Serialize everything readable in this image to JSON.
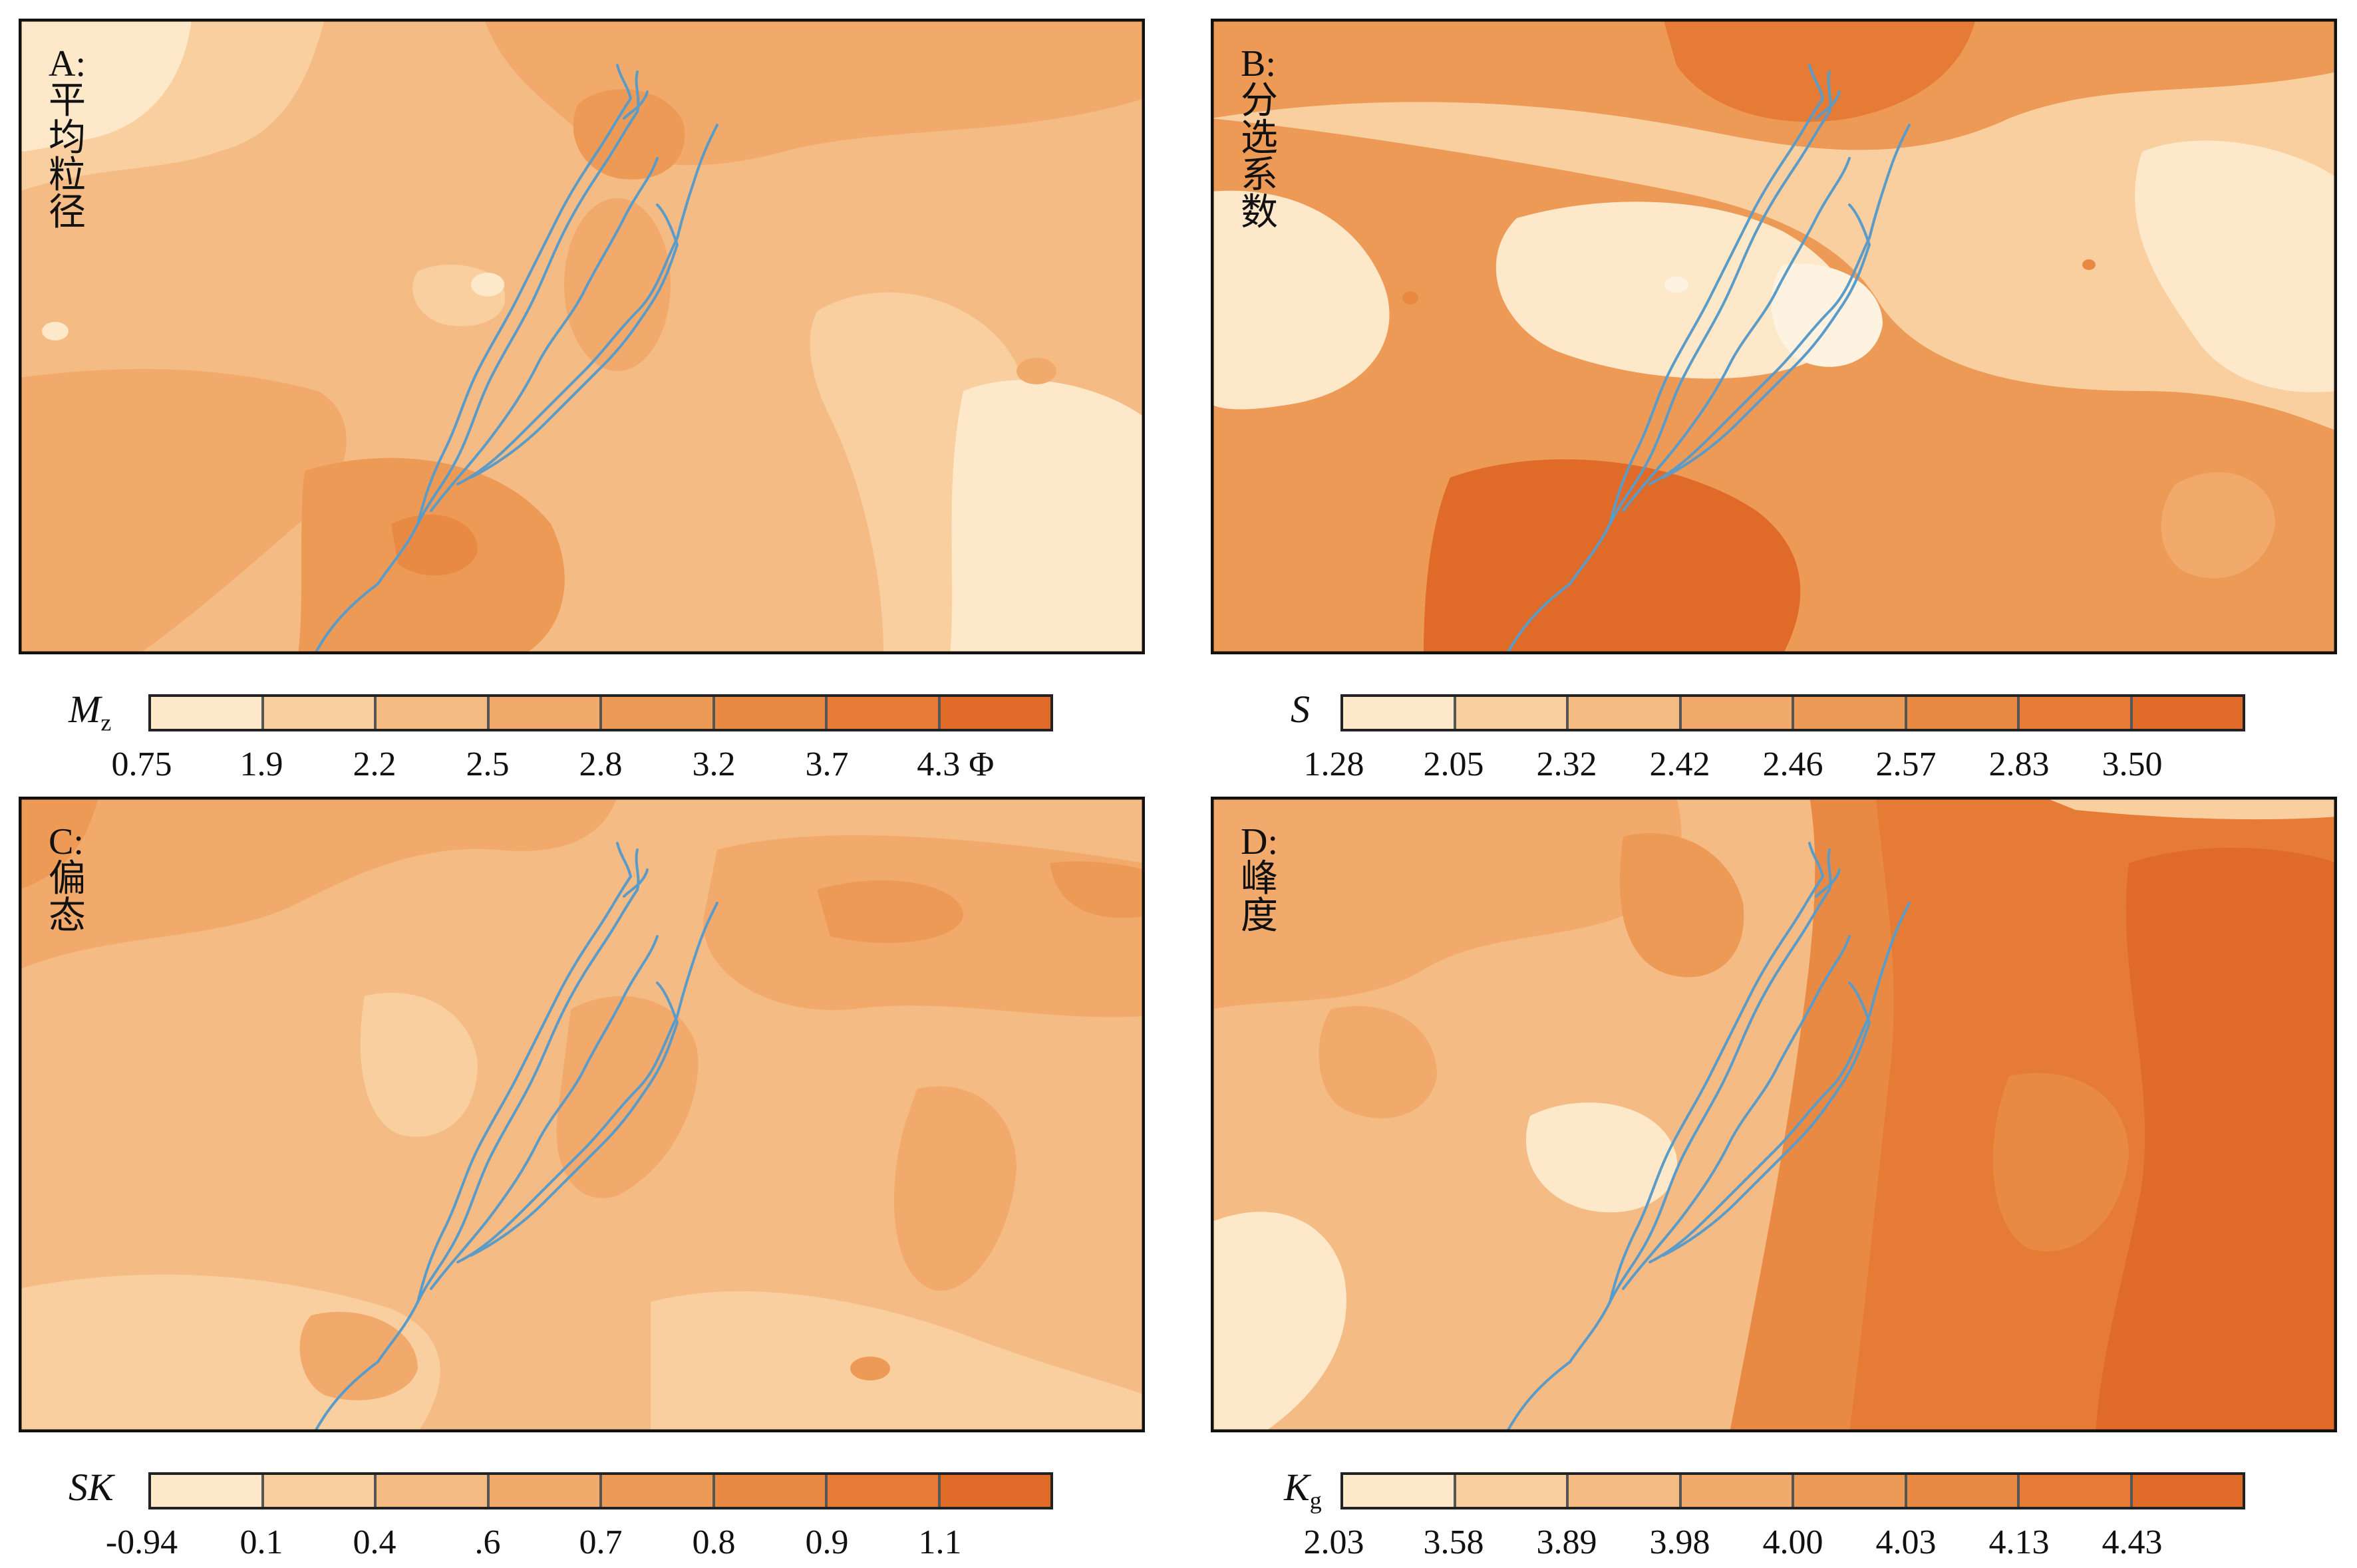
{
  "panels": [
    {
      "id": "A",
      "title": "A: 平均粒径",
      "legend_symbol": "M",
      "legend_subscript": "z",
      "ticks": [
        "0.75",
        "1.9",
        "2.2",
        "2.5",
        "2.8",
        "3.2",
        "3.7",
        "4.3 Φ"
      ],
      "colors": [
        "#fde8c9",
        "#f9cfa0",
        "#f5bb84",
        "#f2aa6c",
        "#ee9a57",
        "#e98a44",
        "#e57b35",
        "#e06a28"
      ]
    },
    {
      "id": "B",
      "title": "B: 分选系数",
      "legend_symbol": "S",
      "legend_subscript": "",
      "ticks": [
        "1.28",
        "2.05",
        "2.32",
        "2.42",
        "2.46",
        "2.57",
        "2.83",
        "3.50"
      ],
      "colors": [
        "#fde8c9",
        "#f9cfa0",
        "#f5bb84",
        "#f2aa6c",
        "#ee9a57",
        "#e98a44",
        "#e57b35",
        "#e06a28"
      ]
    },
    {
      "id": "C",
      "title": "C: 偏态",
      "legend_symbol": "SK",
      "legend_subscript": "",
      "ticks": [
        "-0.94",
        "0.1",
        "0.4",
        ".6",
        "0.7",
        "0.8",
        "0.9",
        "1.1"
      ],
      "colors": [
        "#fde8c9",
        "#f9cfa0",
        "#f5bb84",
        "#f2aa6c",
        "#ee9a57",
        "#e98a44",
        "#e57b35",
        "#e06a28"
      ]
    },
    {
      "id": "D",
      "title": "D: 峰度",
      "legend_symbol": "K",
      "legend_subscript": "g",
      "ticks": [
        "2.03",
        "3.58",
        "3.89",
        "3.98",
        "4.00",
        "4.03",
        "4.13",
        "4.43"
      ],
      "colors": [
        "#fde8c9",
        "#f9cfa0",
        "#f5bb84",
        "#f2aa6c",
        "#ee9a57",
        "#e98a44",
        "#e57b35",
        "#e06a28"
      ]
    }
  ],
  "river_color": "#5b9bc8"
}
